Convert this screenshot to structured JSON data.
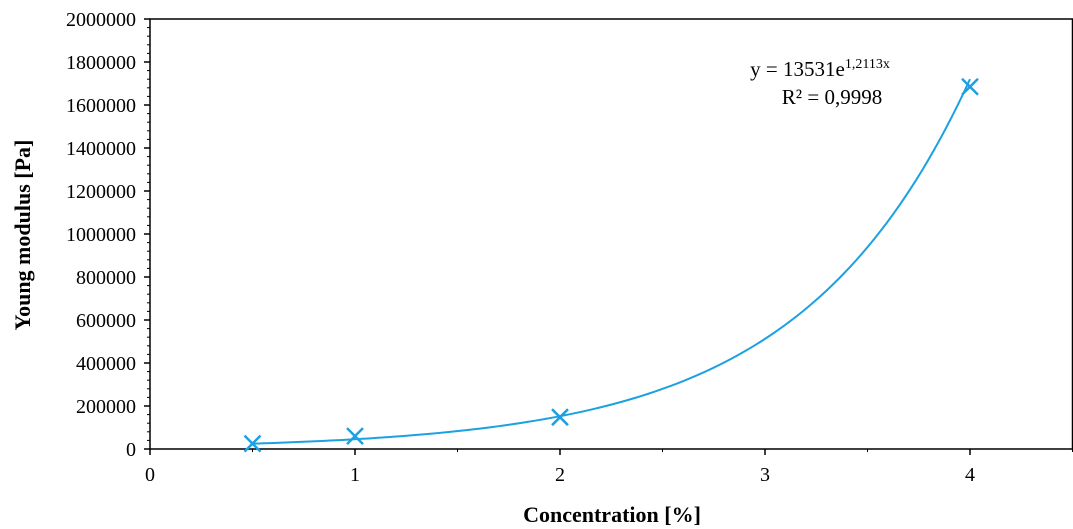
{
  "chart_data": {
    "type": "scatter",
    "title": "",
    "xlabel": "Concentration [%]",
    "ylabel": "Young modulus [Pa]",
    "xlim": [
      0,
      4.5
    ],
    "ylim": [
      0,
      2000000
    ],
    "x_ticks": [
      0,
      1,
      2,
      3,
      4
    ],
    "x_tick_labels": [
      "0",
      "1",
      "2",
      "3",
      "4"
    ],
    "y_ticks": [
      0,
      200000,
      400000,
      600000,
      800000,
      1000000,
      1200000,
      1400000,
      1600000,
      1800000,
      2000000
    ],
    "y_tick_labels": [
      "0",
      "200000",
      "400000",
      "600000",
      "800000",
      "1000000",
      "1200000",
      "1400000",
      "1600000",
      "1800000",
      "2000000"
    ],
    "grid": false,
    "legend": "none",
    "series": [
      {
        "marker": "x",
        "color": "#1ba1e2",
        "x": [
          0.5,
          1,
          2,
          4
        ],
        "y": [
          25000,
          60000,
          148000,
          1685000
        ]
      }
    ],
    "trendline": {
      "type": "exponential",
      "a": 13531,
      "b": 1.2113,
      "x_range": [
        0.5,
        4
      ],
      "color": "#1ba1e2"
    },
    "annotations": {
      "equation_prefix": "y = 13531e",
      "equation_exponent": "1,2113x",
      "r_squared": "R² = 0,9998"
    }
  }
}
